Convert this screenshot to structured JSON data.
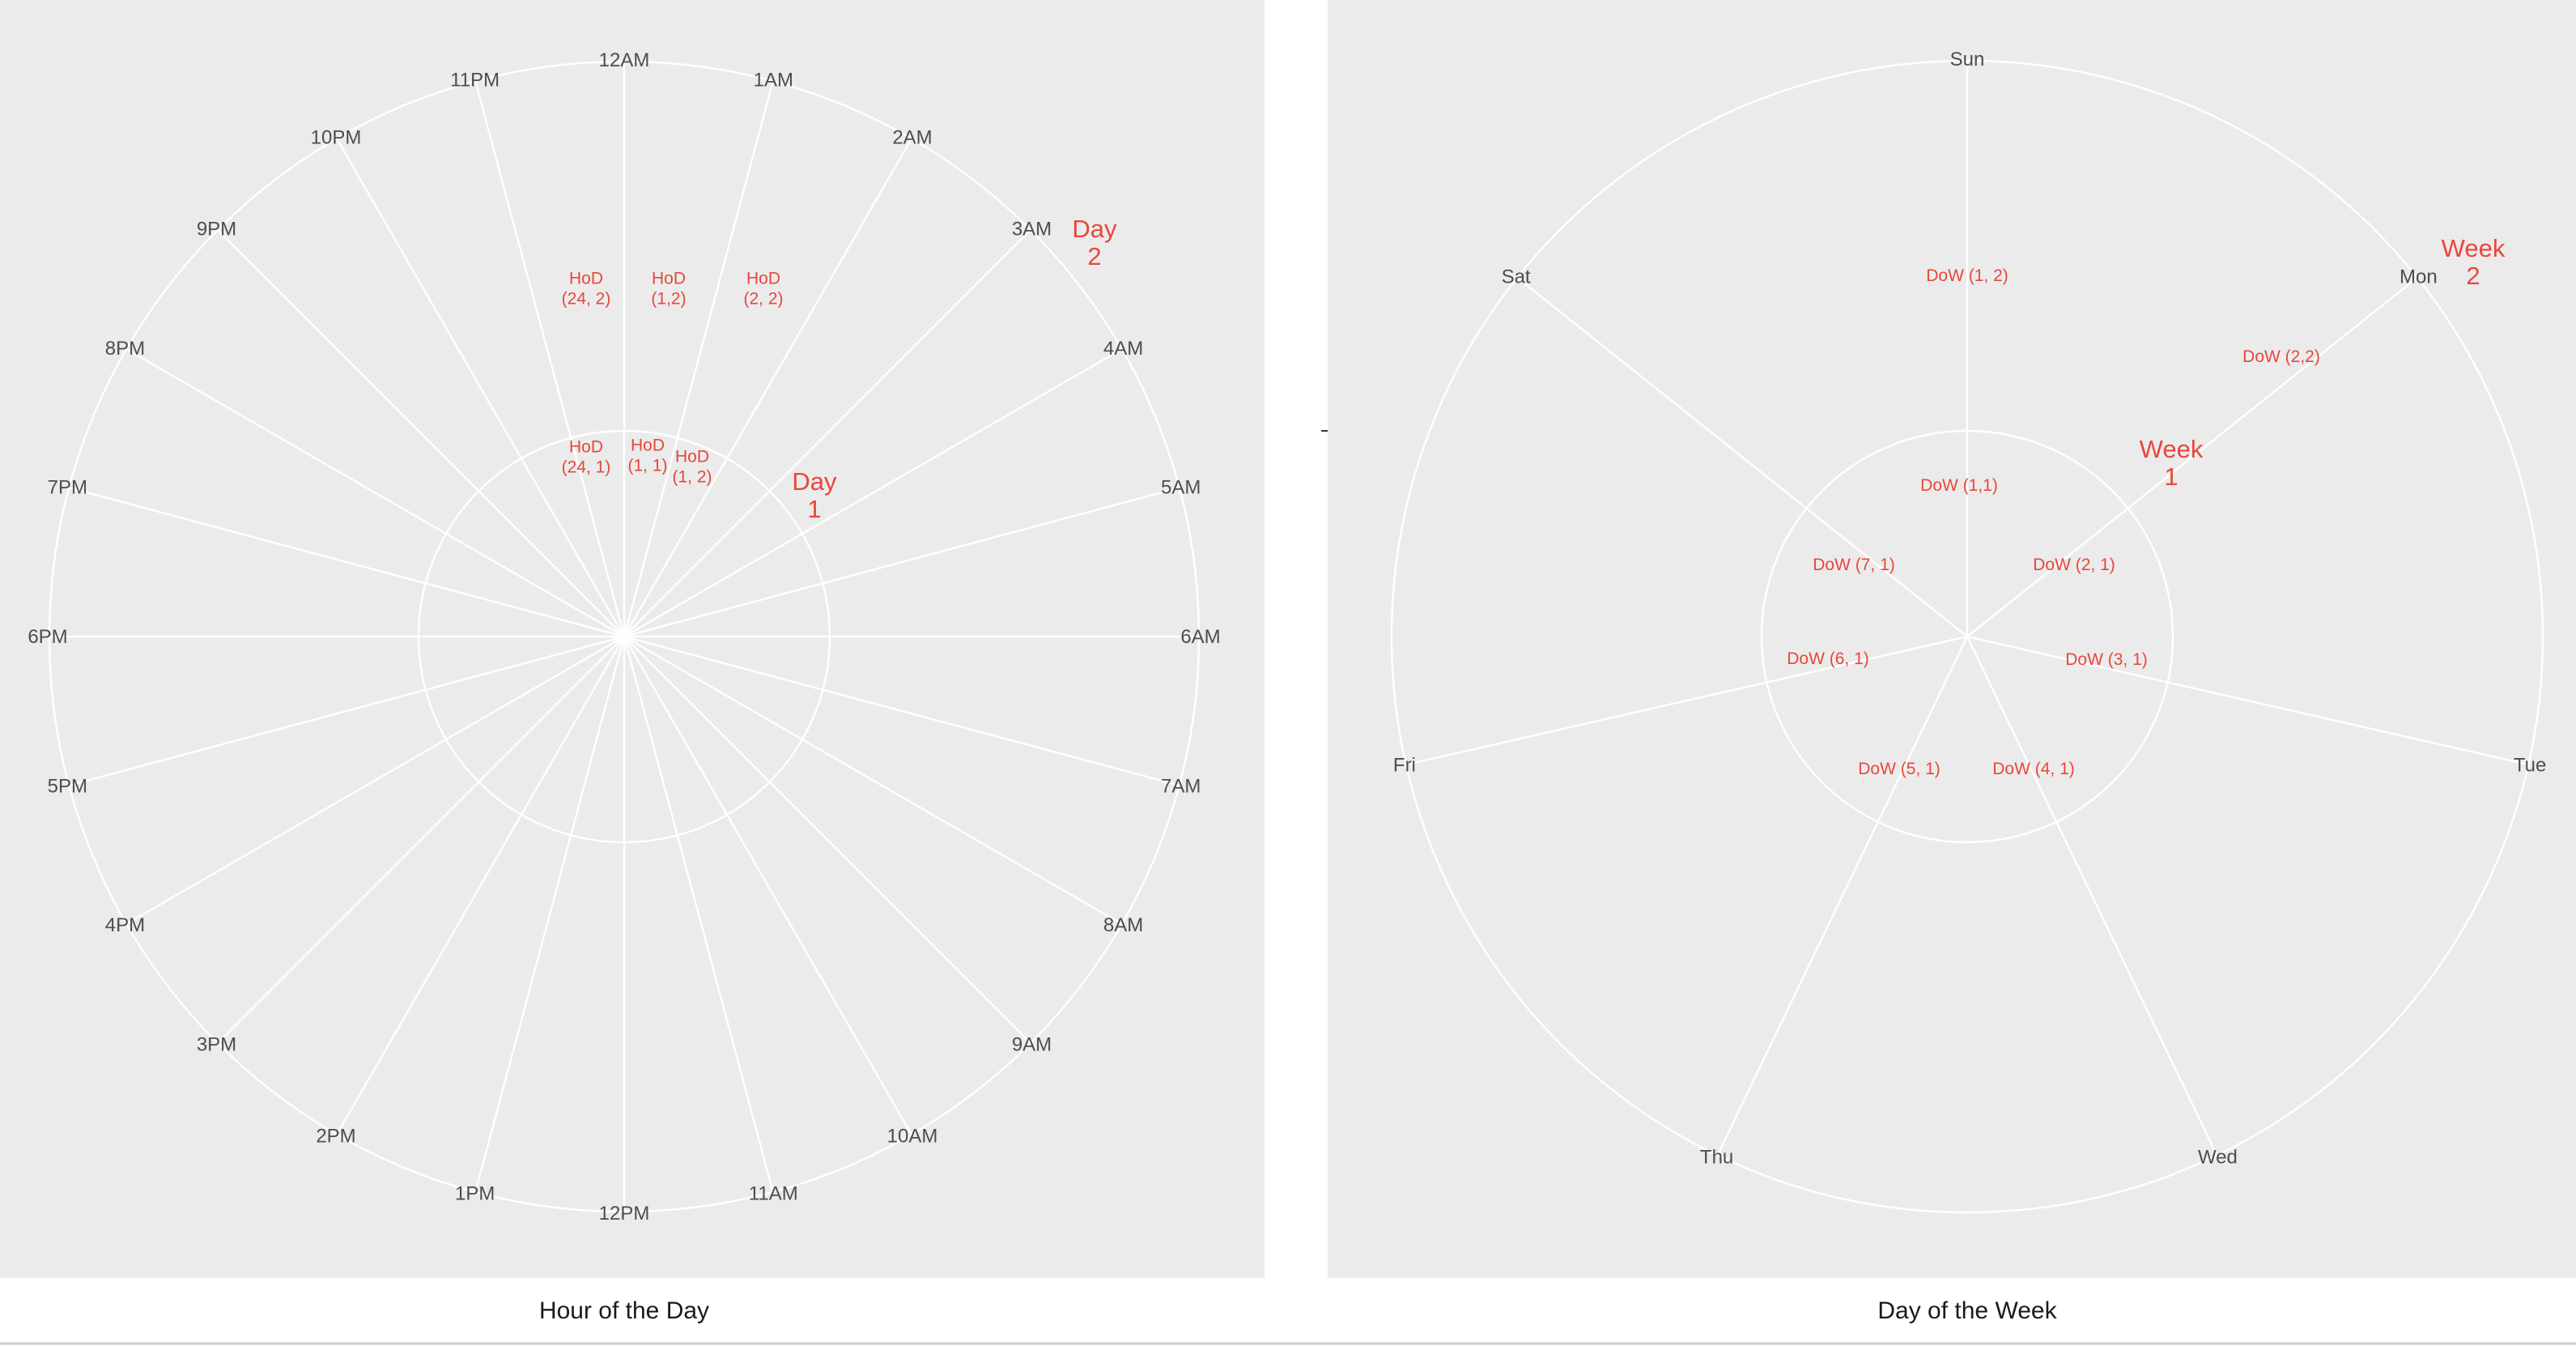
{
  "panels": [
    {
      "id": "hour",
      "xlabel": "Hour of the Day",
      "ticks": [
        "12AM",
        "1AM",
        "2AM",
        "3AM",
        "4AM",
        "5AM",
        "6AM",
        "7AM",
        "8AM",
        "9AM",
        "10AM",
        "11AM",
        "12PM",
        "1PM",
        "2PM",
        "3PM",
        "4PM",
        "5PM",
        "6PM",
        "7PM",
        "8PM",
        "9PM",
        "10PM",
        "11PM"
      ],
      "rings": [
        "Day 1",
        "Day 2"
      ],
      "annotations": [
        {
          "lines": [
            "HoD",
            "(24, 2)"
          ],
          "size": "sm"
        },
        {
          "lines": [
            "HoD",
            "(1,2)"
          ],
          "size": "sm"
        },
        {
          "lines": [
            "HoD",
            "(2, 2)"
          ],
          "size": "sm"
        },
        {
          "lines": [
            "HoD",
            "(24, 1)"
          ],
          "size": "sm"
        },
        {
          "lines": [
            "HoD",
            "(1, 1)"
          ],
          "size": "sm"
        },
        {
          "lines": [
            "HoD",
            "(1, 2)"
          ],
          "size": "sm"
        },
        {
          "lines": [
            "Day",
            "1"
          ],
          "size": "lg"
        },
        {
          "lines": [
            "Day",
            "2"
          ],
          "size": "lg"
        }
      ]
    },
    {
      "id": "week",
      "xlabel": "Day of the Week",
      "ticks": [
        "Sun",
        "Mon",
        "Tue",
        "Wed",
        "Thu",
        "Fri",
        "Sat"
      ],
      "rings": [
        "Week 1",
        "Week 2"
      ],
      "annotations": [
        {
          "lines": [
            "DoW (1, 2)"
          ],
          "size": "sm"
        },
        {
          "lines": [
            "DoW (2,2)"
          ],
          "size": "sm"
        },
        {
          "lines": [
            "DoW (1,1)"
          ],
          "size": "sm"
        },
        {
          "lines": [
            "DoW (7, 1)"
          ],
          "size": "sm"
        },
        {
          "lines": [
            "DoW (2, 1)"
          ],
          "size": "sm"
        },
        {
          "lines": [
            "DoW (6, 1)"
          ],
          "size": "sm"
        },
        {
          "lines": [
            "DoW (3, 1)"
          ],
          "size": "sm"
        },
        {
          "lines": [
            "DoW (5, 1)"
          ],
          "size": "sm"
        },
        {
          "lines": [
            "DoW (4, 1)"
          ],
          "size": "sm"
        },
        {
          "lines": [
            "Week",
            "1"
          ],
          "size": "lg"
        },
        {
          "lines": [
            "Week",
            "2"
          ],
          "size": "lg"
        }
      ]
    }
  ],
  "colors": {
    "panel_background": "#ebebeb",
    "grid": "#ffffff",
    "annotation": "#e8473b",
    "tick_text": "#4d4d4d"
  }
}
